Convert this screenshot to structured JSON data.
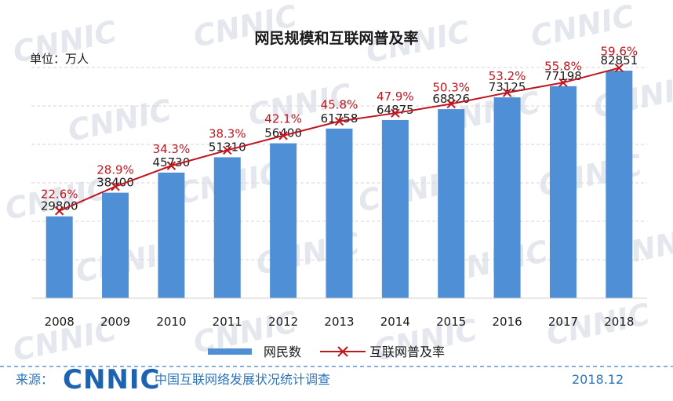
{
  "chart_data": {
    "type": "bar+line",
    "title": "网民规模和互联网普及率",
    "unit_label": "单位：万人",
    "categories": [
      "2008",
      "2009",
      "2010",
      "2011",
      "2012",
      "2013",
      "2014",
      "2015",
      "2016",
      "2017",
      "2018"
    ],
    "series": [
      {
        "name": "网民数",
        "type": "bar",
        "color": "#4e8fd6",
        "values": [
          29800,
          38400,
          45730,
          51310,
          56400,
          61758,
          64875,
          68826,
          73125,
          77198,
          82851
        ]
      },
      {
        "name": "互联网普及率",
        "type": "line",
        "color": "#c0161f",
        "values": [
          22.6,
          28.9,
          34.3,
          38.3,
          42.1,
          45.8,
          47.9,
          50.3,
          53.2,
          55.8,
          59.6
        ],
        "labels": [
          "22.6%",
          "28.9%",
          "34.3%",
          "38.3%",
          "42.1%",
          "45.8%",
          "47.9%",
          "50.3%",
          "53.2%",
          "55.8%",
          "59.6%"
        ]
      }
    ],
    "bar_ylim": [
      0,
      100000
    ],
    "line_ylim": [
      0,
      65
    ],
    "legend_position": "bottom-center",
    "grid": "horizontal dashed"
  },
  "footer": {
    "source_label": "来源：",
    "logo_text": "CNNIC",
    "org_name": "中国互联网络发展状况统计调查",
    "date": "2018.12"
  },
  "watermark_text": "CNNIC",
  "colors": {
    "accent": "#2c74b8",
    "bar": "#4e8fd6",
    "line": "#c0161f"
  }
}
